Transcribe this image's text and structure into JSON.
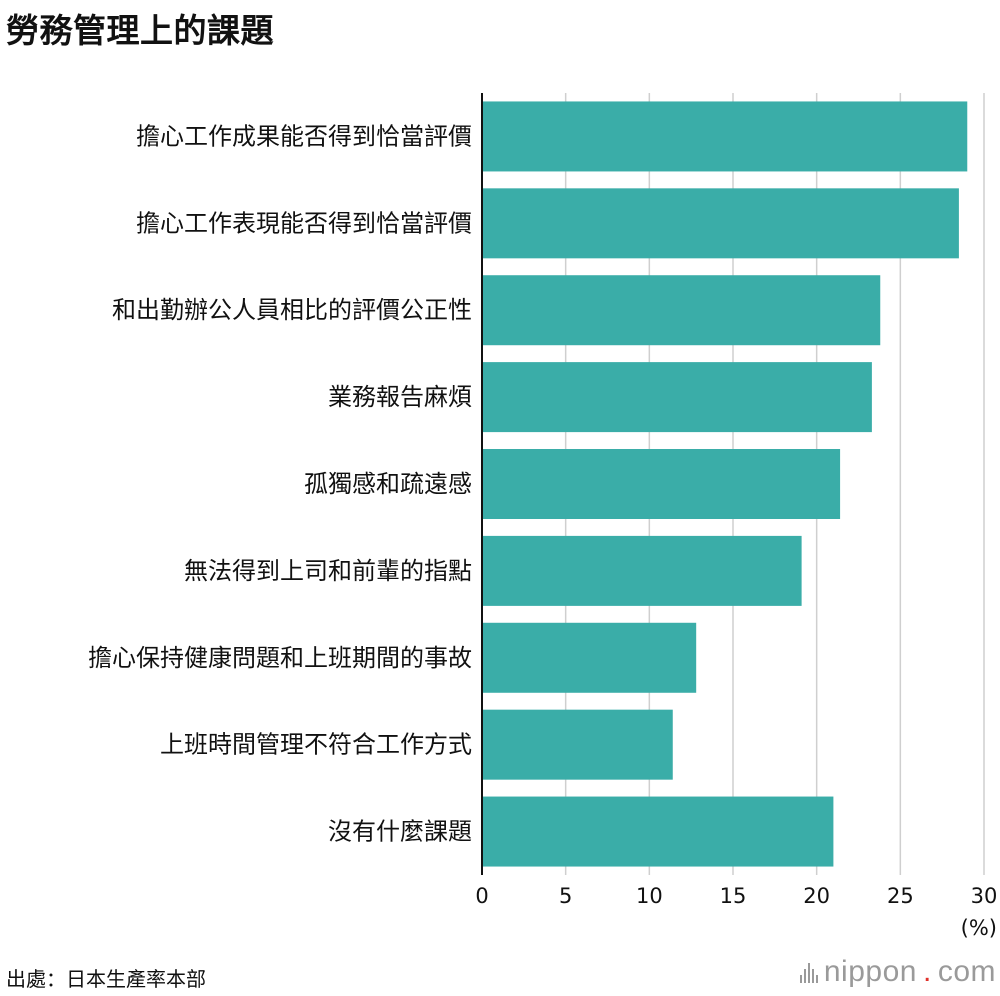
{
  "title": "勞務管理上的課題",
  "source": "出處：日本生產率本部",
  "brand": {
    "text": "nippon",
    "dot": ".",
    "suffix": "com",
    "icon": "nippon-logo-icon"
  },
  "colors": {
    "bar": "#3aada8",
    "grid": "#cfcfcf",
    "axis": "#111111",
    "brand_dot": "#e0312a"
  },
  "chart_data": {
    "type": "bar",
    "orientation": "horizontal",
    "title": "勞務管理上的課題",
    "unit": "(%)",
    "categories": [
      "擔心工作成果能否得到恰當評價",
      "擔心工作表現能否得到恰當評價",
      "和出勤辦公人員相比的評價公正性",
      "業務報告麻煩",
      "孤獨感和疏遠感",
      "無法得到上司和前輩的指點",
      "擔心保持健康問題和上班期間的事故",
      "上班時間管理不符合工作方式",
      "沒有什麼課題"
    ],
    "values": [
      29.0,
      28.5,
      23.8,
      23.3,
      21.4,
      19.1,
      12.8,
      11.4,
      21.0
    ],
    "xlim": [
      0,
      30
    ],
    "xticks": [
      0,
      5,
      10,
      15,
      20,
      25,
      30
    ],
    "grid": true
  }
}
